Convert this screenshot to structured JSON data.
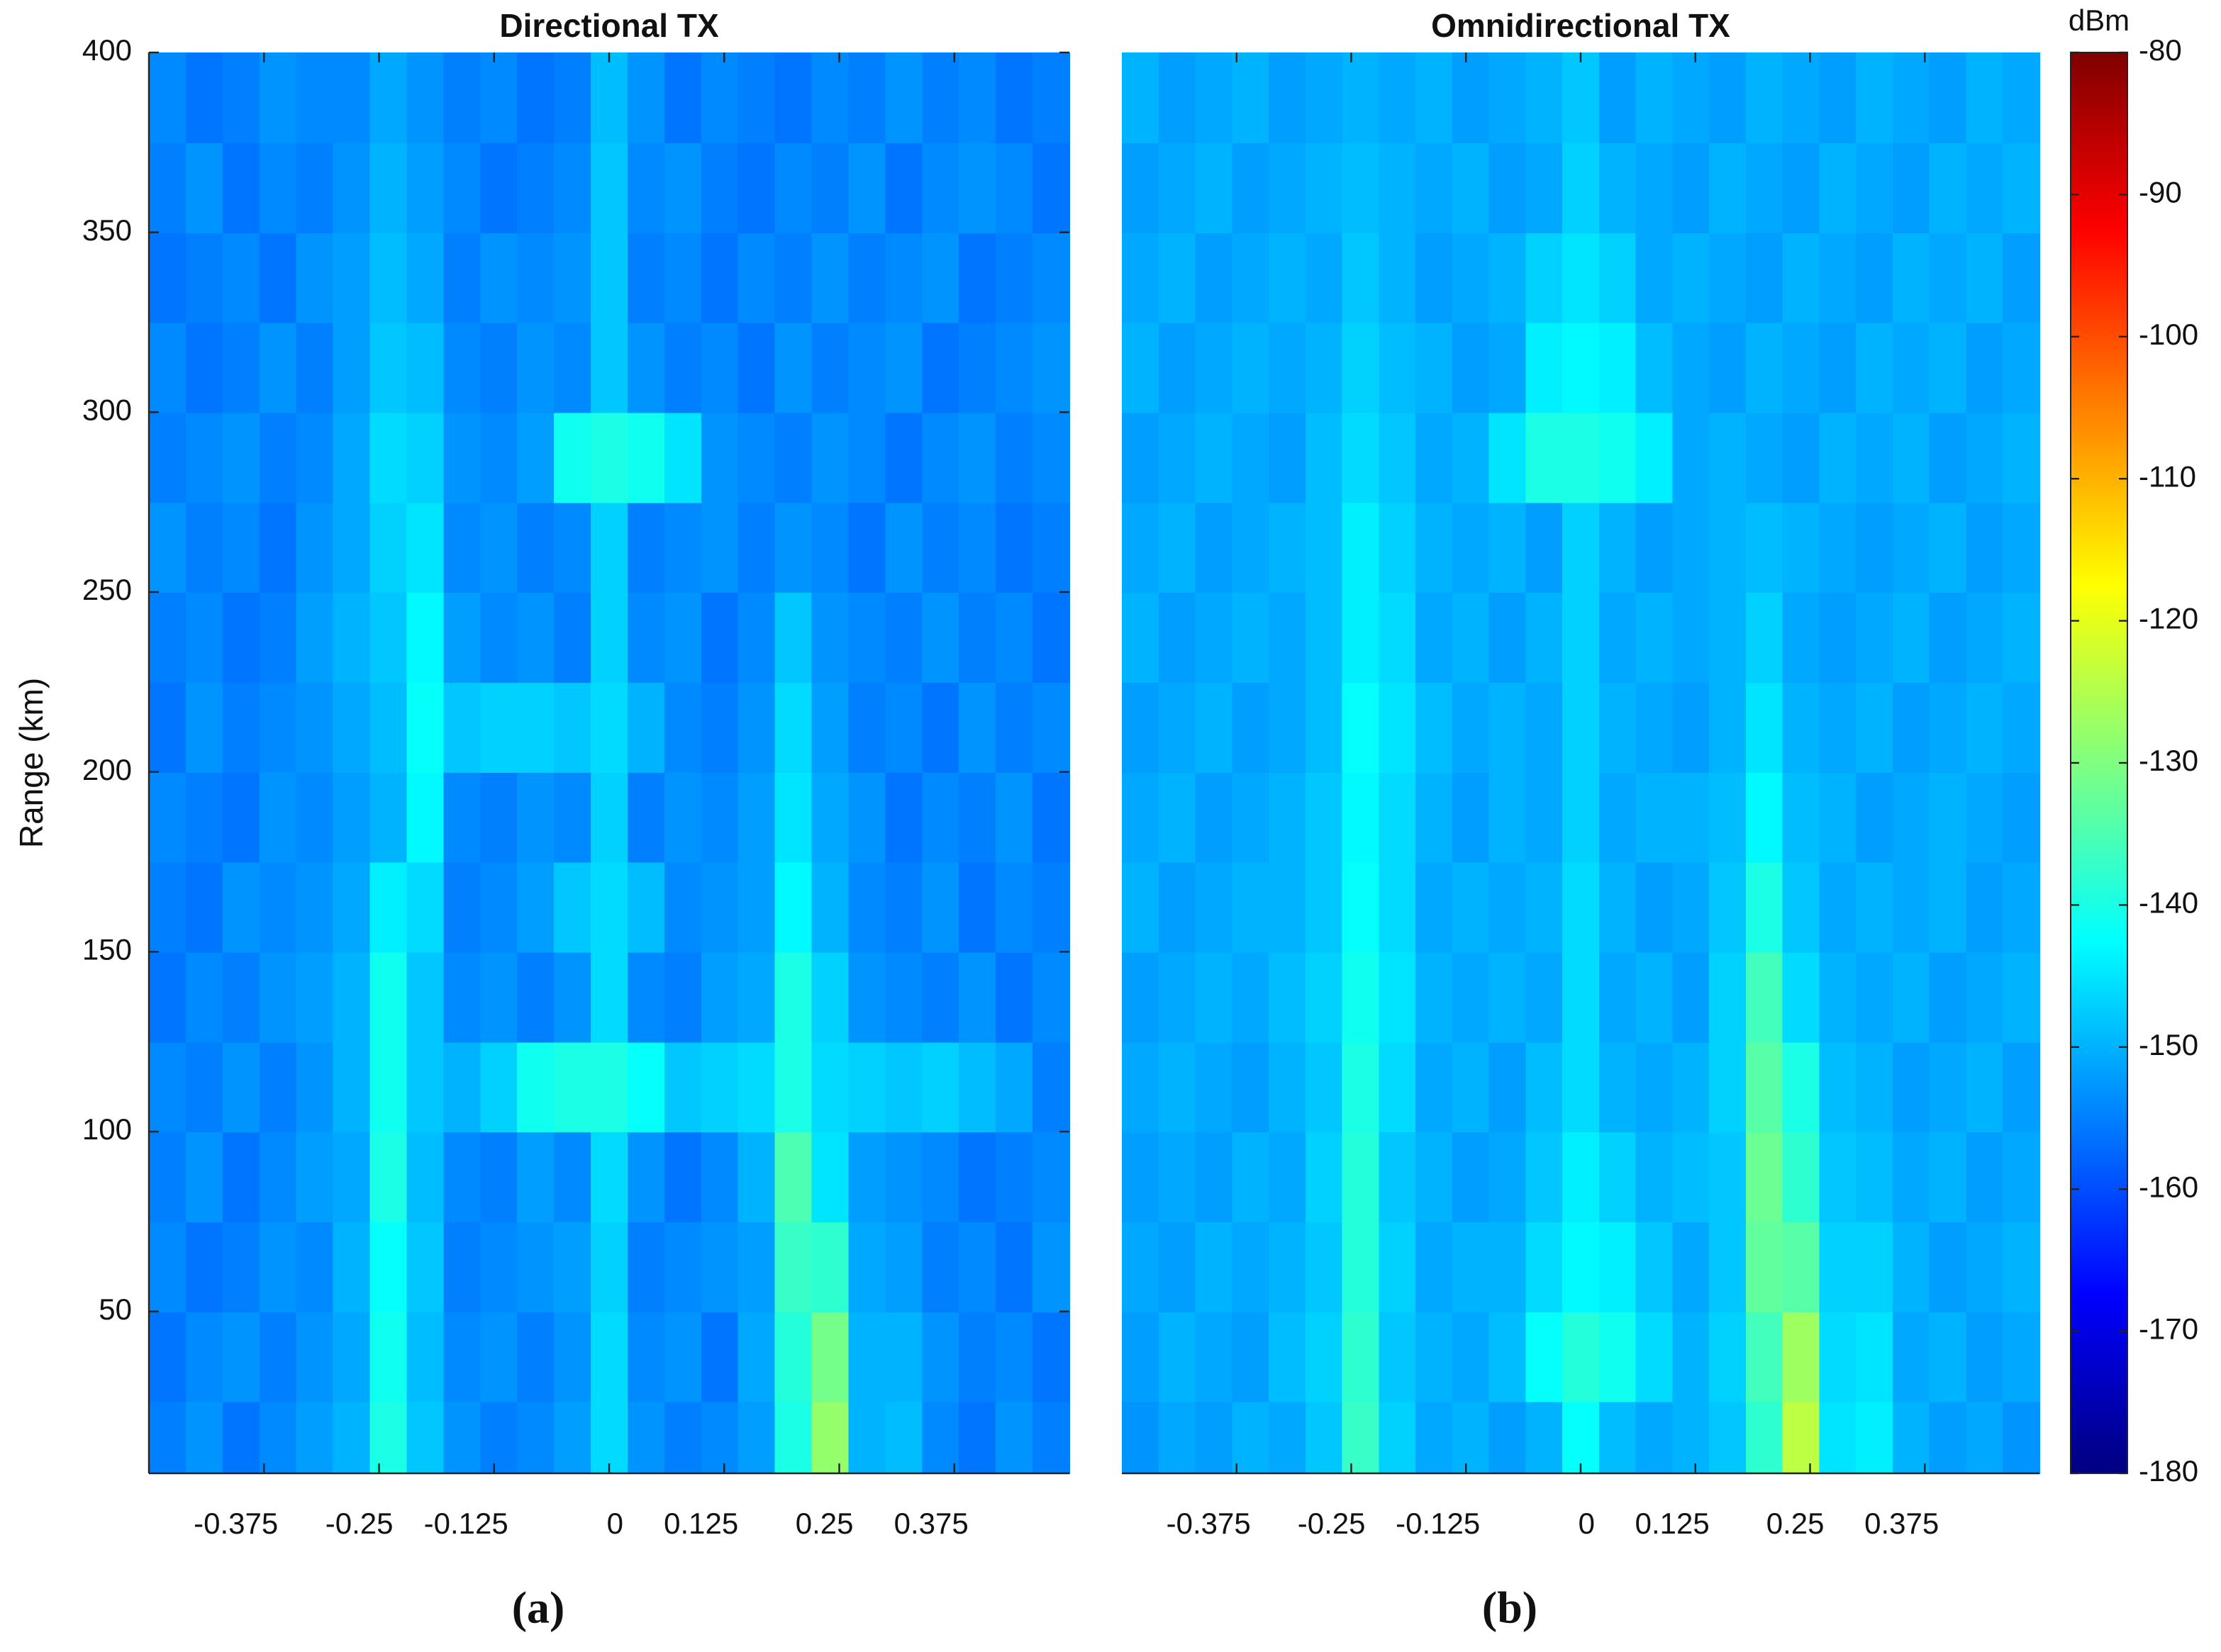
{
  "chart_data": [
    {
      "type": "heatmap",
      "title": "Directional TX",
      "ylabel": "Range (km)",
      "panel_label": "(a)",
      "colormap": "jet",
      "xlim": [
        -0.5,
        0.5
      ],
      "ylim": [
        5,
        400
      ],
      "zlim": [
        -180,
        -80
      ],
      "xticks": [
        -0.375,
        -0.25,
        -0.125,
        0,
        0.125,
        0.25,
        0.375
      ],
      "yticks": [
        50,
        100,
        150,
        200,
        250,
        300,
        350,
        400
      ],
      "x": [
        -0.48,
        -0.44,
        -0.4,
        -0.36,
        -0.32,
        -0.28,
        -0.24,
        -0.2,
        -0.16,
        -0.12,
        -0.08,
        -0.04,
        0,
        0.04,
        0.08,
        0.12,
        0.16,
        0.2,
        0.24,
        0.28,
        0.32,
        0.36,
        0.4,
        0.44,
        0.48
      ],
      "y": [
        12.5,
        37.5,
        62.5,
        87.5,
        112.5,
        137.5,
        162.5,
        187.5,
        212.5,
        237.5,
        262.5,
        287.5,
        312.5,
        337.5,
        362.5,
        387.5
      ],
      "z": [
        [
          -155,
          -153,
          -156,
          -154,
          -152,
          -150,
          -140,
          -148,
          -153,
          -155,
          -154,
          -152,
          -146,
          -153,
          -155,
          -154,
          -152,
          -140,
          -128,
          -150,
          -149,
          -154,
          -156,
          -153,
          -155
        ],
        [
          -156,
          -154,
          -153,
          -155,
          -153,
          -151,
          -141,
          -149,
          -154,
          -153,
          -155,
          -153,
          -146,
          -154,
          -153,
          -156,
          -151,
          -139,
          -131,
          -150,
          -150,
          -153,
          -155,
          -154,
          -156
        ],
        [
          -154,
          -156,
          -155,
          -153,
          -154,
          -150,
          -142,
          -148,
          -155,
          -154,
          -153,
          -152,
          -147,
          -155,
          -154,
          -153,
          -152,
          -137,
          -138,
          -151,
          -152,
          -155,
          -154,
          -156,
          -153
        ],
        [
          -155,
          -153,
          -156,
          -154,
          -152,
          -151,
          -140,
          -149,
          -154,
          -155,
          -152,
          -154,
          -146,
          -153,
          -156,
          -154,
          -150,
          -135,
          -145,
          -152,
          -153,
          -154,
          -156,
          -155,
          -154
        ],
        [
          -154,
          -155,
          -153,
          -155,
          -153,
          -150,
          -141,
          -148,
          -150,
          -147,
          -141,
          -140,
          -140,
          -142,
          -148,
          -147,
          -146,
          -140,
          -146,
          -147,
          -148,
          -147,
          -149,
          -151,
          -155
        ],
        [
          -156,
          -154,
          -155,
          -153,
          -152,
          -150,
          -141,
          -148,
          -154,
          -153,
          -155,
          -153,
          -146,
          -154,
          -155,
          -152,
          -151,
          -140,
          -147,
          -153,
          -154,
          -155,
          -153,
          -156,
          -154
        ],
        [
          -155,
          -156,
          -153,
          -154,
          -153,
          -151,
          -144,
          -146,
          -155,
          -154,
          -152,
          -148,
          -146,
          -149,
          -154,
          -153,
          -152,
          -143,
          -150,
          -154,
          -155,
          -153,
          -156,
          -154,
          -155
        ],
        [
          -154,
          -155,
          -156,
          -153,
          -154,
          -152,
          -150,
          -143,
          -154,
          -155,
          -153,
          -154,
          -147,
          -155,
          -153,
          -154,
          -152,
          -145,
          -151,
          -153,
          -156,
          -154,
          -155,
          -153,
          -156
        ],
        [
          -156,
          -153,
          -155,
          -154,
          -153,
          -151,
          -149,
          -142,
          -148,
          -147,
          -147,
          -148,
          -146,
          -150,
          -154,
          -155,
          -153,
          -146,
          -152,
          -155,
          -154,
          -156,
          -153,
          -155,
          -154
        ],
        [
          -155,
          -154,
          -156,
          -155,
          -152,
          -150,
          -148,
          -143,
          -152,
          -154,
          -153,
          -155,
          -147,
          -154,
          -153,
          -156,
          -154,
          -148,
          -153,
          -154,
          -155,
          -153,
          -155,
          -154,
          -156
        ],
        [
          -153,
          -155,
          -154,
          -156,
          -153,
          -151,
          -147,
          -145,
          -154,
          -153,
          -155,
          -154,
          -147,
          -155,
          -154,
          -153,
          -155,
          -153,
          -154,
          -156,
          -153,
          -155,
          -154,
          -156,
          -155
        ],
        [
          -155,
          -154,
          -153,
          -155,
          -154,
          -151,
          -146,
          -147,
          -153,
          -154,
          -152,
          -141,
          -140,
          -141,
          -145,
          -153,
          -154,
          -155,
          -153,
          -154,
          -156,
          -154,
          -153,
          -155,
          -154
        ],
        [
          -154,
          -156,
          -155,
          -153,
          -155,
          -152,
          -148,
          -149,
          -154,
          -155,
          -153,
          -154,
          -148,
          -153,
          -155,
          -154,
          -156,
          -153,
          -155,
          -154,
          -153,
          -156,
          -155,
          -154,
          -153
        ],
        [
          -156,
          -155,
          -154,
          -156,
          -153,
          -152,
          -149,
          -151,
          -155,
          -153,
          -154,
          -153,
          -148,
          -155,
          -154,
          -156,
          -154,
          -155,
          -153,
          -155,
          -154,
          -153,
          -156,
          -155,
          -154
        ],
        [
          -155,
          -153,
          -156,
          -154,
          -155,
          -153,
          -150,
          -152,
          -154,
          -156,
          -155,
          -154,
          -148,
          -154,
          -153,
          -155,
          -156,
          -154,
          -155,
          -153,
          -156,
          -154,
          -153,
          -154,
          -156
        ],
        [
          -154,
          -156,
          -155,
          -153,
          -154,
          -154,
          -151,
          -153,
          -155,
          -154,
          -156,
          -155,
          -149,
          -153,
          -156,
          -154,
          -155,
          -156,
          -154,
          -155,
          -153,
          -155,
          -154,
          -156,
          -155
        ]
      ]
    },
    {
      "type": "heatmap",
      "title": "Omnidirectional TX",
      "panel_label": "(b)",
      "colormap": "jet",
      "xlim": [
        -0.5,
        0.5
      ],
      "ylim": [
        5,
        400
      ],
      "zlim": [
        -180,
        -80
      ],
      "xticks": [
        -0.375,
        -0.25,
        -0.125,
        0,
        0.125,
        0.25,
        0.375
      ],
      "x": [
        -0.48,
        -0.44,
        -0.4,
        -0.36,
        -0.32,
        -0.28,
        -0.24,
        -0.2,
        -0.16,
        -0.12,
        -0.08,
        -0.04,
        0,
        0.04,
        0.08,
        0.12,
        0.16,
        0.2,
        0.24,
        0.28,
        0.32,
        0.36,
        0.4,
        0.44,
        0.48
      ],
      "y": [
        12.5,
        37.5,
        62.5,
        87.5,
        112.5,
        137.5,
        162.5,
        187.5,
        212.5,
        237.5,
        262.5,
        287.5,
        312.5,
        337.5,
        362.5,
        387.5
      ],
      "z": [
        [
          -153,
          -151,
          -152,
          -150,
          -151,
          -148,
          -137,
          -147,
          -151,
          -150,
          -152,
          -150,
          -142,
          -149,
          -151,
          -150,
          -148,
          -138,
          -124,
          -145,
          -144,
          -150,
          -152,
          -151,
          -153
        ],
        [
          -152,
          -150,
          -151,
          -152,
          -149,
          -147,
          -138,
          -148,
          -150,
          -151,
          -149,
          -142,
          -139,
          -141,
          -146,
          -150,
          -147,
          -136,
          -127,
          -146,
          -145,
          -151,
          -150,
          -152,
          -151
        ],
        [
          -151,
          -152,
          -150,
          -151,
          -150,
          -148,
          -139,
          -147,
          -151,
          -150,
          -150,
          -146,
          -143,
          -144,
          -148,
          -151,
          -148,
          -133,
          -134,
          -147,
          -147,
          -150,
          -152,
          -151,
          -150
        ],
        [
          -152,
          -151,
          -152,
          -150,
          -151,
          -147,
          -139,
          -148,
          -150,
          -152,
          -151,
          -148,
          -144,
          -147,
          -150,
          -149,
          -148,
          -132,
          -138,
          -148,
          -149,
          -151,
          -150,
          -152,
          -151
        ],
        [
          -151,
          -150,
          -151,
          -152,
          -150,
          -148,
          -140,
          -146,
          -151,
          -150,
          -152,
          -149,
          -146,
          -150,
          -151,
          -150,
          -147,
          -134,
          -140,
          -149,
          -150,
          -152,
          -151,
          -150,
          -152
        ],
        [
          -152,
          -151,
          -150,
          -151,
          -149,
          -147,
          -141,
          -145,
          -150,
          -151,
          -150,
          -151,
          -146,
          -151,
          -150,
          -152,
          -147,
          -136,
          -146,
          -150,
          -151,
          -150,
          -152,
          -151,
          -150
        ],
        [
          -150,
          -152,
          -151,
          -150,
          -150,
          -148,
          -142,
          -146,
          -151,
          -150,
          -151,
          -150,
          -146,
          -150,
          -152,
          -151,
          -148,
          -140,
          -148,
          -151,
          -150,
          -151,
          -150,
          -152,
          -151
        ],
        [
          -151,
          -150,
          -152,
          -151,
          -150,
          -148,
          -143,
          -146,
          -150,
          -152,
          -150,
          -151,
          -147,
          -151,
          -150,
          -150,
          -149,
          -143,
          -149,
          -150,
          -152,
          -151,
          -150,
          -151,
          -152
        ],
        [
          -152,
          -151,
          -150,
          -152,
          -151,
          -149,
          -142,
          -145,
          -149,
          -151,
          -150,
          -151,
          -147,
          -150,
          -151,
          -152,
          -150,
          -145,
          -150,
          -151,
          -150,
          -152,
          -151,
          -150,
          -151
        ],
        [
          -150,
          -152,
          -151,
          -150,
          -151,
          -149,
          -144,
          -146,
          -151,
          -150,
          -152,
          -150,
          -147,
          -151,
          -150,
          -151,
          -150,
          -147,
          -151,
          -152,
          -151,
          -150,
          -152,
          -151,
          -150
        ],
        [
          -151,
          -150,
          -152,
          -151,
          -150,
          -149,
          -144,
          -147,
          -150,
          -151,
          -150,
          -152,
          -147,
          -150,
          -152,
          -151,
          -150,
          -149,
          -150,
          -151,
          -152,
          -151,
          -150,
          -152,
          -151
        ],
        [
          -152,
          -151,
          -150,
          -151,
          -152,
          -149,
          -146,
          -148,
          -151,
          -150,
          -145,
          -140,
          -140,
          -141,
          -144,
          -151,
          -150,
          -151,
          -152,
          -150,
          -151,
          -150,
          -152,
          -151,
          -150
        ],
        [
          -150,
          -152,
          -151,
          -150,
          -151,
          -150,
          -147,
          -149,
          -150,
          -152,
          -151,
          -144,
          -143,
          -144,
          -149,
          -151,
          -152,
          -150,
          -151,
          -152,
          -150,
          -151,
          -150,
          -152,
          -151
        ],
        [
          -151,
          -150,
          -152,
          -151,
          -150,
          -151,
          -148,
          -150,
          -152,
          -151,
          -150,
          -147,
          -145,
          -147,
          -151,
          -150,
          -151,
          -152,
          -150,
          -151,
          -152,
          -150,
          -151,
          -150,
          -152
        ],
        [
          -152,
          -151,
          -150,
          -152,
          -151,
          -150,
          -149,
          -150,
          -151,
          -150,
          -152,
          -151,
          -147,
          -150,
          -151,
          -152,
          -150,
          -151,
          -152,
          -150,
          -151,
          -152,
          -150,
          -151,
          -150
        ],
        [
          -150,
          -152,
          -151,
          -150,
          -152,
          -151,
          -150,
          -151,
          -150,
          -152,
          -151,
          -150,
          -148,
          -152,
          -150,
          -151,
          -152,
          -150,
          -151,
          -152,
          -150,
          -151,
          -152,
          -150,
          -151
        ]
      ],
      "colorbar": {
        "label": "dBm",
        "ticks": [
          -180,
          -170,
          -160,
          -150,
          -140,
          -130,
          -120,
          -110,
          -100,
          -90,
          -80
        ]
      }
    }
  ]
}
